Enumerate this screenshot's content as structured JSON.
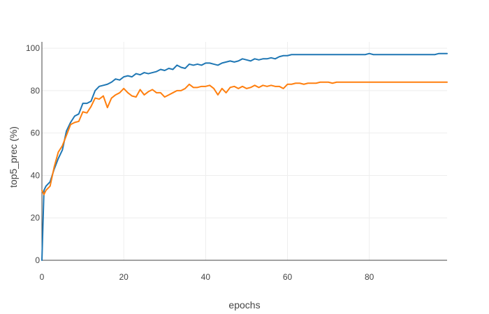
{
  "chart_data": {
    "type": "line",
    "xlabel": "epochs",
    "ylabel": "top5_prec (%)",
    "xlim": [
      0,
      99
    ],
    "ylim": [
      0,
      103
    ],
    "xticks": [
      0,
      20,
      40,
      60,
      80
    ],
    "yticks": [
      0,
      20,
      40,
      60,
      80,
      100
    ],
    "grid": true,
    "legend": "none",
    "series": [
      {
        "color": "#1f77b4",
        "x": [
          0,
          0.5,
          1,
          2,
          3,
          4,
          5,
          6,
          7,
          8,
          9,
          10,
          11,
          12,
          13,
          14,
          15,
          16,
          17,
          18,
          19,
          20,
          21,
          22,
          23,
          24,
          25,
          26,
          27,
          28,
          29,
          30,
          31,
          32,
          33,
          34,
          35,
          36,
          37,
          38,
          39,
          40,
          41,
          42,
          43,
          44,
          45,
          46,
          47,
          48,
          49,
          50,
          51,
          52,
          53,
          54,
          55,
          56,
          57,
          58,
          59,
          60,
          61,
          62,
          63,
          64,
          65,
          66,
          67,
          68,
          69,
          70,
          71,
          72,
          73,
          74,
          75,
          76,
          77,
          78,
          79,
          80,
          81,
          82,
          83,
          84,
          85,
          86,
          87,
          88,
          89,
          90,
          91,
          92,
          93,
          94,
          95,
          96,
          97,
          98,
          99
        ],
        "y": [
          0,
          33,
          35,
          37,
          43,
          48,
          52,
          61,
          65,
          68,
          69,
          74,
          74,
          75,
          80,
          82,
          82.5,
          83,
          84,
          85.5,
          85,
          86.5,
          87,
          86.5,
          88,
          87.5,
          88.5,
          88,
          88.5,
          89,
          90,
          89.5,
          90.5,
          90,
          92,
          91,
          90.5,
          92.5,
          92,
          92.5,
          92,
          93,
          93,
          92.5,
          92,
          93,
          93.5,
          94,
          93.5,
          94,
          95,
          94.5,
          94,
          95,
          94.5,
          95,
          95,
          95.5,
          95,
          96,
          96.5,
          96.5,
          97,
          97,
          97,
          97,
          97,
          97,
          97,
          97,
          97,
          97,
          97,
          97,
          97,
          97,
          97,
          97,
          97,
          97,
          97,
          97.5,
          97,
          97,
          97,
          97,
          97,
          97,
          97,
          97,
          97,
          97,
          97,
          97,
          97,
          97,
          97,
          97,
          97.5,
          97.5,
          97.5
        ]
      },
      {
        "color": "#ff7f0e",
        "x": [
          0,
          0.5,
          1,
          2,
          3,
          4,
          5,
          6,
          7,
          8,
          9,
          10,
          11,
          12,
          13,
          14,
          15,
          16,
          17,
          18,
          19,
          20,
          21,
          22,
          23,
          24,
          25,
          26,
          27,
          28,
          29,
          30,
          31,
          32,
          33,
          34,
          35,
          36,
          37,
          38,
          39,
          40,
          41,
          42,
          43,
          44,
          45,
          46,
          47,
          48,
          49,
          50,
          51,
          52,
          53,
          54,
          55,
          56,
          57,
          58,
          59,
          60,
          61,
          62,
          63,
          64,
          65,
          66,
          67,
          68,
          69,
          70,
          71,
          72,
          73,
          74,
          75,
          76,
          77,
          78,
          79,
          80,
          81,
          82,
          83,
          84,
          85,
          86,
          87,
          88,
          89,
          90,
          91,
          92,
          93,
          94,
          95,
          96,
          97,
          98,
          99
        ],
        "y": [
          33,
          31,
          33,
          35,
          44,
          51,
          54,
          59,
          64,
          65,
          65.5,
          70,
          69.5,
          72.5,
          76.5,
          76,
          77.5,
          72,
          76.5,
          78,
          79,
          81,
          79,
          77.5,
          77,
          80.5,
          78,
          79.5,
          80.5,
          79,
          79,
          77,
          78,
          79,
          80,
          80,
          81,
          83,
          81.5,
          81.5,
          82,
          82,
          82.5,
          81,
          78,
          81,
          79,
          81.5,
          82,
          81,
          82,
          81,
          81.5,
          82.5,
          81.5,
          82.5,
          82,
          82.5,
          82,
          82,
          81,
          83,
          83,
          83.5,
          83.5,
          83,
          83.5,
          83.5,
          83.5,
          84,
          84,
          84,
          83.5,
          84,
          84,
          84,
          84,
          84,
          84,
          84,
          84,
          84,
          84,
          84,
          84,
          84,
          84,
          84,
          84,
          84,
          84,
          84,
          84,
          84,
          84,
          84,
          84,
          84,
          84,
          84,
          84
        ]
      }
    ]
  }
}
